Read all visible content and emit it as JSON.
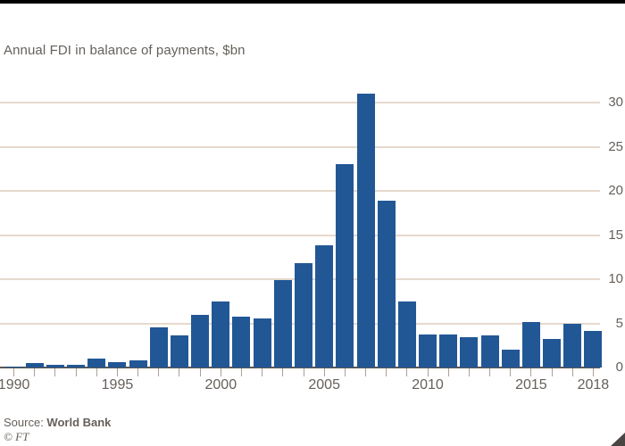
{
  "header": {
    "title": "Annual FDI in balance of payments, $bn"
  },
  "chart_data": {
    "type": "bar",
    "title": "Annual FDI in balance of payments, $bn",
    "xlabel": "",
    "ylabel": "",
    "x": [
      1990,
      1991,
      1992,
      1993,
      1994,
      1995,
      1996,
      1997,
      1998,
      1999,
      2000,
      2001,
      2002,
      2003,
      2004,
      2005,
      2006,
      2007,
      2008,
      2009,
      2010,
      2011,
      2012,
      2013,
      2014,
      2015,
      2016,
      2017,
      2018
    ],
    "values": [
      0.1,
      0.5,
      0.35,
      0.3,
      1.0,
      0.6,
      0.8,
      4.5,
      3.6,
      6.0,
      7.5,
      5.8,
      5.6,
      9.9,
      11.8,
      13.8,
      23.0,
      31.0,
      18.9,
      7.5,
      3.7,
      3.7,
      3.4,
      3.6,
      2.0,
      5.2,
      3.2,
      5.0,
      4.1
    ],
    "ylim": [
      0,
      32
    ],
    "yticks": [
      0,
      5,
      10,
      15,
      20,
      25,
      30
    ],
    "xtick_labels": [
      "1990",
      "1995",
      "2000",
      "2005",
      "2010",
      "2015",
      "2018"
    ],
    "grid": "horizontal",
    "ytick_side": "right",
    "legend": "none",
    "bar_color": "#225795"
  },
  "footer": {
    "source_prefix": "Source: ",
    "source_name": "World Bank",
    "credit": "© FT"
  },
  "colors": {
    "background": "#ffffff",
    "top_rule": "#000000",
    "title_text": "#66605b",
    "axis_text": "#66605b",
    "gridline": "#e6d9cc",
    "axis_line": "#5e5852",
    "tick": "#aaa098",
    "bar": "#225795",
    "corner_fold": "#4a4542"
  }
}
